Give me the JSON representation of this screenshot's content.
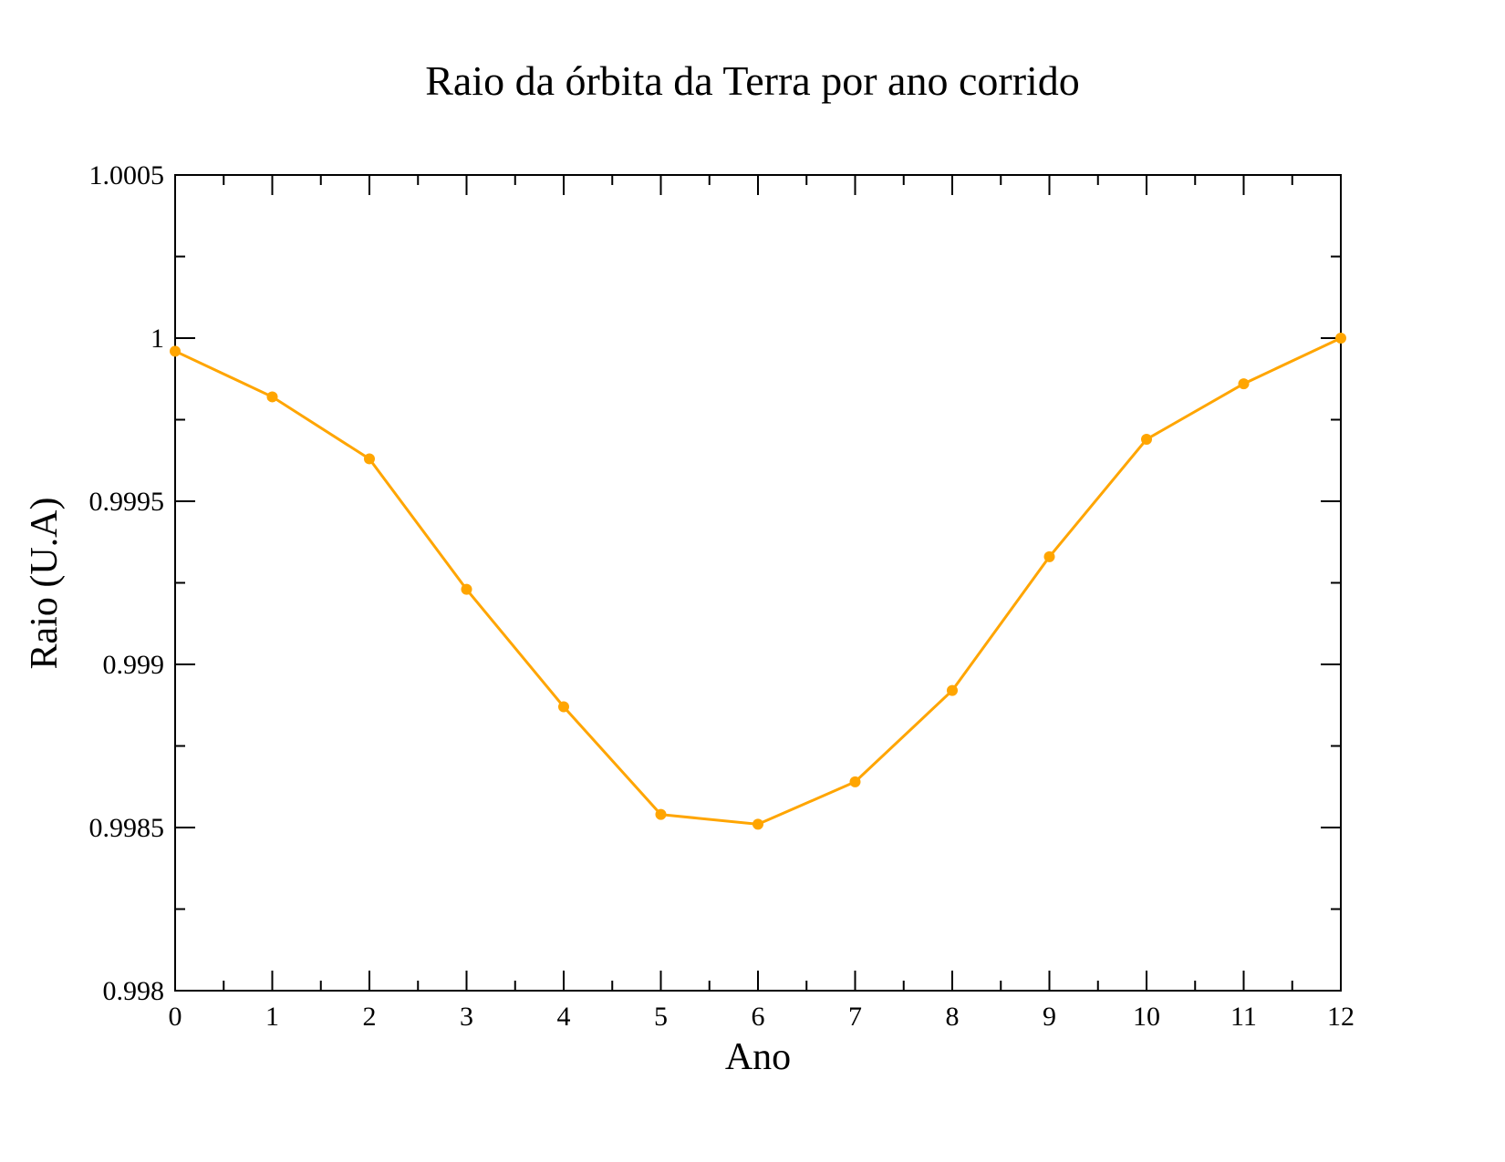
{
  "chart_data": {
    "type": "line",
    "title": "Raio da órbita da Terra por ano corrido",
    "xlabel": "Ano",
    "ylabel": "Raio (U.A)",
    "xlim": [
      0,
      12
    ],
    "ylim": [
      0.998,
      1.0005
    ],
    "x_ticks": [
      "0",
      "1",
      "2",
      "3",
      "4",
      "5",
      "6",
      "7",
      "8",
      "9",
      "10",
      "11",
      "12"
    ],
    "y_ticks": [
      "0.998",
      "0.9985",
      "0.999",
      "0.9995",
      "1",
      "1.0005"
    ],
    "grid": false,
    "legend": "none",
    "series": [
      {
        "color": "#FFA500",
        "x": [
          0,
          1,
          2,
          3,
          4,
          5,
          6,
          7,
          8,
          9,
          10,
          11,
          12
        ],
        "y": [
          0.99996,
          0.99982,
          0.99963,
          0.99923,
          0.99887,
          0.99854,
          0.99851,
          0.99864,
          0.99892,
          0.99933,
          0.99969,
          0.99986,
          1.0
        ]
      }
    ]
  }
}
